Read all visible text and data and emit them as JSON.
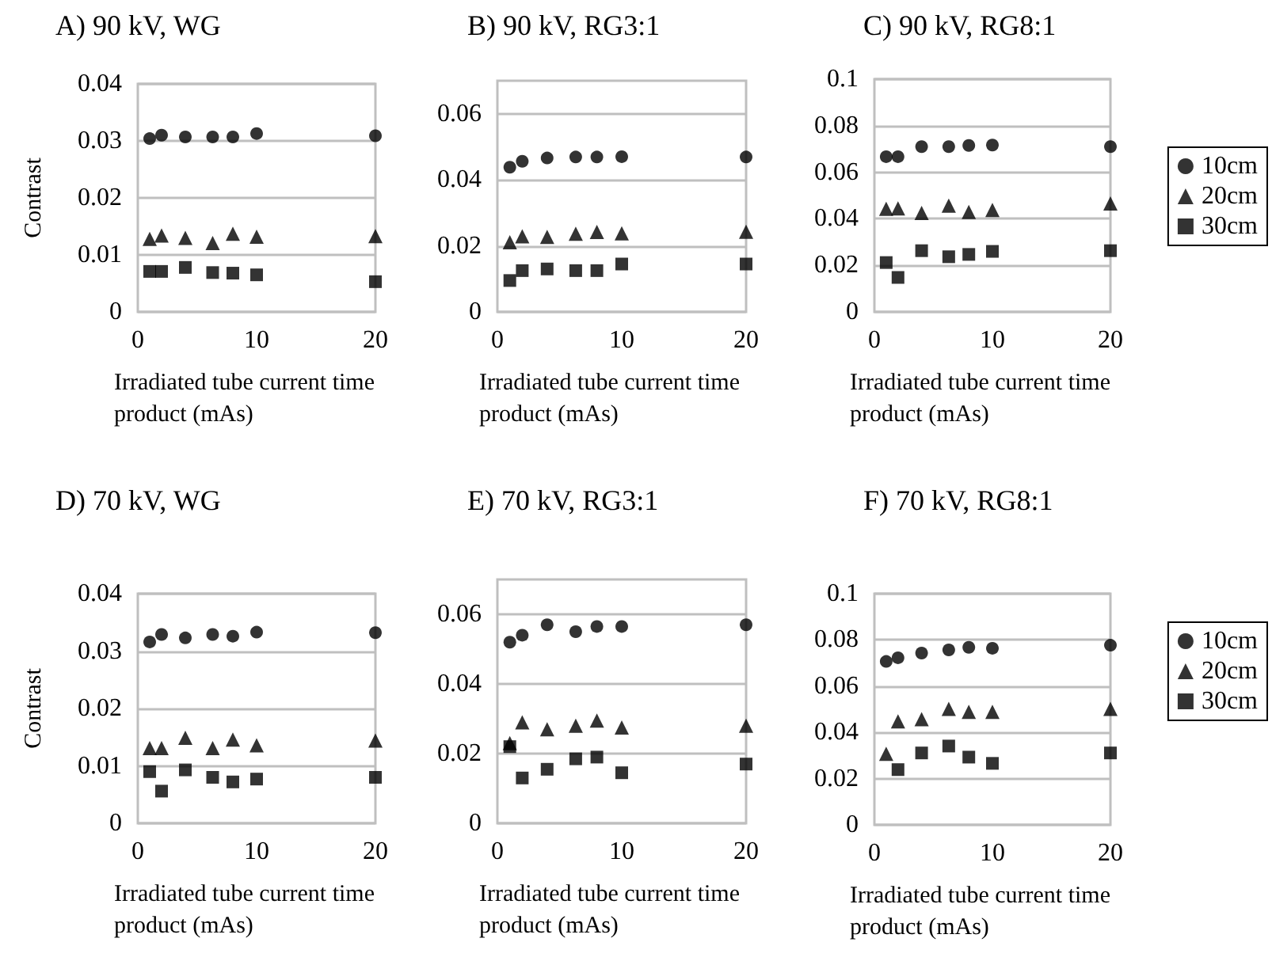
{
  "chart_data": [
    {
      "type": "scatter",
      "title": "A) 90 kV, WG",
      "xlabel": "Irradiated tube current time product (mAs)",
      "ylabel": "Contrast",
      "x": [
        1,
        2,
        4,
        6.3,
        8,
        10,
        20
      ],
      "xlim": [
        0,
        20
      ],
      "xticks": [
        0,
        10,
        20
      ],
      "ylim": [
        0,
        0.04
      ],
      "yticks": [
        0,
        0.01,
        0.02,
        0.03,
        0.04
      ],
      "grid": "y",
      "legend": false,
      "series": [
        {
          "marker": "circle",
          "color": "#000000",
          "values": [
            0.0304,
            0.031,
            0.0307,
            0.0307,
            0.0307,
            0.0313,
            0.0309
          ]
        },
        {
          "marker": "triangle",
          "color": "#000000",
          "values": [
            0.0128,
            0.0134,
            0.013,
            0.0121,
            0.0137,
            0.0132,
            0.0133
          ]
        },
        {
          "marker": "square",
          "color": "#000000",
          "values": [
            0.0071,
            0.0071,
            0.0078,
            0.0069,
            0.0068,
            0.0065,
            0.0053
          ]
        }
      ]
    },
    {
      "type": "scatter",
      "title": "B) 90 kV, RG3:1",
      "xlabel": "Irradiated tube current time product (mAs)",
      "x": [
        1,
        2,
        4,
        6.3,
        8,
        10,
        20
      ],
      "xlim": [
        0,
        20
      ],
      "xticks": [
        0,
        10,
        20
      ],
      "ylim": [
        0,
        0.07
      ],
      "yticks": [
        0,
        0.02,
        0.04,
        0.06
      ],
      "grid": "y",
      "legend": false,
      "series": [
        {
          "marker": "circle",
          "color": "#000000",
          "values": [
            0.0438,
            0.0456,
            0.0466,
            0.0469,
            0.0469,
            0.047,
            0.0469
          ]
        },
        {
          "marker": "triangle",
          "color": "#000000",
          "values": [
            0.0211,
            0.0229,
            0.0227,
            0.0237,
            0.0242,
            0.0238,
            0.0243
          ]
        },
        {
          "marker": "square",
          "color": "#000000",
          "values": [
            0.0095,
            0.0125,
            0.013,
            0.0125,
            0.0125,
            0.0145,
            0.0145
          ]
        }
      ]
    },
    {
      "type": "scatter",
      "title": "C) 90 kV, RG8:1",
      "xlabel": "Irradiated tube current time product (mAs)",
      "x": [
        1,
        2,
        4,
        6.3,
        8,
        10,
        20
      ],
      "xlim": [
        0,
        20
      ],
      "xticks": [
        0,
        10,
        20
      ],
      "ylim": [
        0,
        0.1
      ],
      "yticks": [
        0,
        0.02,
        0.04,
        0.06,
        0.08,
        0.1
      ],
      "grid": "y",
      "legend": "right",
      "series": [
        {
          "name": "10cm",
          "marker": "circle",
          "color": "#000000",
          "values": [
            0.0667,
            0.0667,
            0.071,
            0.071,
            0.0715,
            0.0717,
            0.071
          ]
        },
        {
          "name": "20cm",
          "marker": "triangle",
          "color": "#000000",
          "values": [
            0.0443,
            0.0445,
            0.0425,
            0.0457,
            0.0429,
            0.0438,
            0.0466
          ]
        },
        {
          "name": "30cm",
          "marker": "square",
          "color": "#000000",
          "values": [
            0.0212,
            0.0148,
            0.0263,
            0.0237,
            0.0247,
            0.026,
            0.0263
          ]
        }
      ]
    },
    {
      "type": "scatter",
      "title": "D) 70 kV, WG",
      "xlabel": "Irradiated tube current time product (mAs)",
      "ylabel": "Contrast",
      "x": [
        1,
        2,
        4,
        6.3,
        8,
        10,
        20
      ],
      "xlim": [
        0,
        20
      ],
      "xticks": [
        0,
        10,
        20
      ],
      "ylim": [
        0,
        0.04
      ],
      "yticks": [
        0,
        0.01,
        0.02,
        0.03,
        0.04
      ],
      "grid": "y",
      "legend": false,
      "series": [
        {
          "marker": "circle",
          "color": "#000000",
          "values": [
            0.0316,
            0.0329,
            0.0323,
            0.0329,
            0.0326,
            0.0333,
            0.0332
          ]
        },
        {
          "marker": "triangle",
          "color": "#000000",
          "values": [
            0.0131,
            0.0131,
            0.0149,
            0.0131,
            0.0146,
            0.0136,
            0.0144
          ]
        },
        {
          "marker": "square",
          "color": "#000000",
          "values": [
            0.009,
            0.0056,
            0.0093,
            0.008,
            0.0072,
            0.0077,
            0.008
          ]
        }
      ]
    },
    {
      "type": "scatter",
      "title": "E) 70 kV, RG3:1",
      "xlabel": "Irradiated tube current time product (mAs)",
      "x": [
        1,
        2,
        4,
        6.3,
        8,
        10,
        20
      ],
      "xlim": [
        0,
        20
      ],
      "xticks": [
        0,
        10,
        20
      ],
      "ylim": [
        0,
        0.07
      ],
      "yticks": [
        0,
        0.02,
        0.04,
        0.06
      ],
      "grid": "y",
      "legend": false,
      "series": [
        {
          "marker": "circle",
          "color": "#000000",
          "values": [
            0.052,
            0.054,
            0.057,
            0.055,
            0.0565,
            0.0565,
            0.057
          ]
        },
        {
          "marker": "triangle",
          "color": "#000000",
          "values": [
            0.023,
            0.029,
            0.027,
            0.028,
            0.0295,
            0.0275,
            0.028
          ]
        },
        {
          "marker": "square",
          "color": "#000000",
          "values": [
            0.022,
            0.013,
            0.0155,
            0.0185,
            0.019,
            0.0145,
            0.017
          ]
        }
      ]
    },
    {
      "type": "scatter",
      "title": "F) 70 kV, RG8:1",
      "xlabel": "Irradiated tube current time product (mAs)",
      "x": [
        1,
        2,
        4,
        6.3,
        8,
        10,
        20
      ],
      "xlim": [
        0,
        20
      ],
      "xticks": [
        0,
        10,
        20
      ],
      "ylim": [
        0,
        0.1
      ],
      "yticks": [
        0,
        0.02,
        0.04,
        0.06,
        0.08,
        0.1
      ],
      "grid": "y",
      "legend": "right",
      "series": [
        {
          "name": "10cm",
          "marker": "circle",
          "color": "#000000",
          "values": [
            0.0707,
            0.0723,
            0.0743,
            0.0757,
            0.0768,
            0.0764,
            0.0777
          ]
        },
        {
          "name": "20cm",
          "marker": "triangle",
          "color": "#000000",
          "values": [
            0.0307,
            0.0448,
            0.0457,
            0.0502,
            0.0489,
            0.0489,
            0.0502
          ]
        },
        {
          "name": "30cm",
          "marker": "square",
          "color": "#000000",
          "values": [
            null,
            0.0239,
            0.0311,
            0.0341,
            0.0293,
            0.0266,
            0.0311
          ]
        }
      ]
    }
  ]
}
